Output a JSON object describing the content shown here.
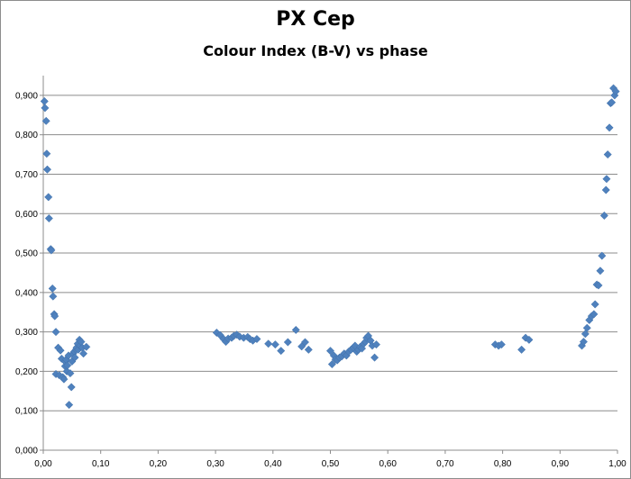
{
  "chart_data": {
    "type": "scatter",
    "title": "PX Cep",
    "subtitle": "Colour Index (B-V) vs phase",
    "xlabel": "",
    "ylabel": "",
    "xlim": [
      0,
      1.0
    ],
    "ylim": [
      0,
      0.95
    ],
    "x_ticks": [
      "0,00",
      "0,10",
      "0,20",
      "0,30",
      "0,40",
      "0,50",
      "0,60",
      "0,70",
      "0,80",
      "0,90",
      "1,00"
    ],
    "y_ticks": [
      "0,000",
      "0,100",
      "0,200",
      "0,300",
      "0,400",
      "0,500",
      "0,600",
      "0,700",
      "0,800",
      "0,900"
    ],
    "grid": "horizontal",
    "marker_color": "#4f81bd",
    "marker": "diamond",
    "series": [
      {
        "points": [
          [
            0.002,
            0.885
          ],
          [
            0.003,
            0.868
          ],
          [
            0.005,
            0.835
          ],
          [
            0.006,
            0.752
          ],
          [
            0.007,
            0.712
          ],
          [
            0.009,
            0.642
          ],
          [
            0.01,
            0.588
          ],
          [
            0.013,
            0.51
          ],
          [
            0.014,
            0.507
          ],
          [
            0.016,
            0.41
          ],
          [
            0.017,
            0.39
          ],
          [
            0.019,
            0.345
          ],
          [
            0.02,
            0.34
          ],
          [
            0.022,
            0.3
          ],
          [
            0.022,
            0.193
          ],
          [
            0.026,
            0.26
          ],
          [
            0.028,
            0.19
          ],
          [
            0.03,
            0.253
          ],
          [
            0.032,
            0.232
          ],
          [
            0.034,
            0.185
          ],
          [
            0.036,
            0.18
          ],
          [
            0.038,
            0.213
          ],
          [
            0.038,
            0.225
          ],
          [
            0.04,
            0.23
          ],
          [
            0.041,
            0.2
          ],
          [
            0.042,
            0.215
          ],
          [
            0.044,
            0.24
          ],
          [
            0.045,
            0.115
          ],
          [
            0.047,
            0.195
          ],
          [
            0.049,
            0.16
          ],
          [
            0.05,
            0.225
          ],
          [
            0.052,
            0.245
          ],
          [
            0.054,
            0.25
          ],
          [
            0.055,
            0.235
          ],
          [
            0.057,
            0.255
          ],
          [
            0.058,
            0.26
          ],
          [
            0.06,
            0.27
          ],
          [
            0.061,
            0.255
          ],
          [
            0.063,
            0.28
          ],
          [
            0.064,
            0.265
          ],
          [
            0.066,
            0.275
          ],
          [
            0.068,
            0.26
          ],
          [
            0.07,
            0.245
          ],
          [
            0.075,
            0.262
          ],
          [
            0.302,
            0.298
          ],
          [
            0.308,
            0.292
          ],
          [
            0.314,
            0.282
          ],
          [
            0.318,
            0.275
          ],
          [
            0.322,
            0.283
          ],
          [
            0.328,
            0.285
          ],
          [
            0.332,
            0.29
          ],
          [
            0.337,
            0.293
          ],
          [
            0.342,
            0.288
          ],
          [
            0.349,
            0.285
          ],
          [
            0.356,
            0.287
          ],
          [
            0.36,
            0.282
          ],
          [
            0.365,
            0.278
          ],
          [
            0.372,
            0.282
          ],
          [
            0.392,
            0.27
          ],
          [
            0.404,
            0.268
          ],
          [
            0.414,
            0.252
          ],
          [
            0.426,
            0.274
          ],
          [
            0.44,
            0.305
          ],
          [
            0.45,
            0.263
          ],
          [
            0.456,
            0.274
          ],
          [
            0.462,
            0.255
          ],
          [
            0.5,
            0.252
          ],
          [
            0.503,
            0.218
          ],
          [
            0.506,
            0.24
          ],
          [
            0.509,
            0.23
          ],
          [
            0.512,
            0.228
          ],
          [
            0.516,
            0.235
          ],
          [
            0.52,
            0.238
          ],
          [
            0.524,
            0.245
          ],
          [
            0.528,
            0.24
          ],
          [
            0.532,
            0.25
          ],
          [
            0.536,
            0.255
          ],
          [
            0.54,
            0.26
          ],
          [
            0.543,
            0.265
          ],
          [
            0.546,
            0.25
          ],
          [
            0.549,
            0.255
          ],
          [
            0.552,
            0.262
          ],
          [
            0.555,
            0.258
          ],
          [
            0.558,
            0.27
          ],
          [
            0.561,
            0.275
          ],
          [
            0.563,
            0.285
          ],
          [
            0.566,
            0.29
          ],
          [
            0.57,
            0.278
          ],
          [
            0.573,
            0.265
          ],
          [
            0.577,
            0.235
          ],
          [
            0.58,
            0.268
          ],
          [
            0.787,
            0.268
          ],
          [
            0.793,
            0.265
          ],
          [
            0.798,
            0.268
          ],
          [
            0.833,
            0.255
          ],
          [
            0.84,
            0.285
          ],
          [
            0.846,
            0.28
          ],
          [
            0.938,
            0.265
          ],
          [
            0.941,
            0.275
          ],
          [
            0.944,
            0.295
          ],
          [
            0.947,
            0.31
          ],
          [
            0.951,
            0.33
          ],
          [
            0.955,
            0.34
          ],
          [
            0.959,
            0.345
          ],
          [
            0.961,
            0.37
          ],
          [
            0.964,
            0.42
          ],
          [
            0.967,
            0.418
          ],
          [
            0.97,
            0.455
          ],
          [
            0.973,
            0.493
          ],
          [
            0.977,
            0.595
          ],
          [
            0.98,
            0.66
          ],
          [
            0.981,
            0.688
          ],
          [
            0.983,
            0.75
          ],
          [
            0.986,
            0.818
          ],
          [
            0.988,
            0.88
          ],
          [
            0.99,
            0.882
          ],
          [
            0.993,
            0.918
          ],
          [
            0.995,
            0.9
          ],
          [
            0.997,
            0.91
          ]
        ]
      }
    ]
  }
}
